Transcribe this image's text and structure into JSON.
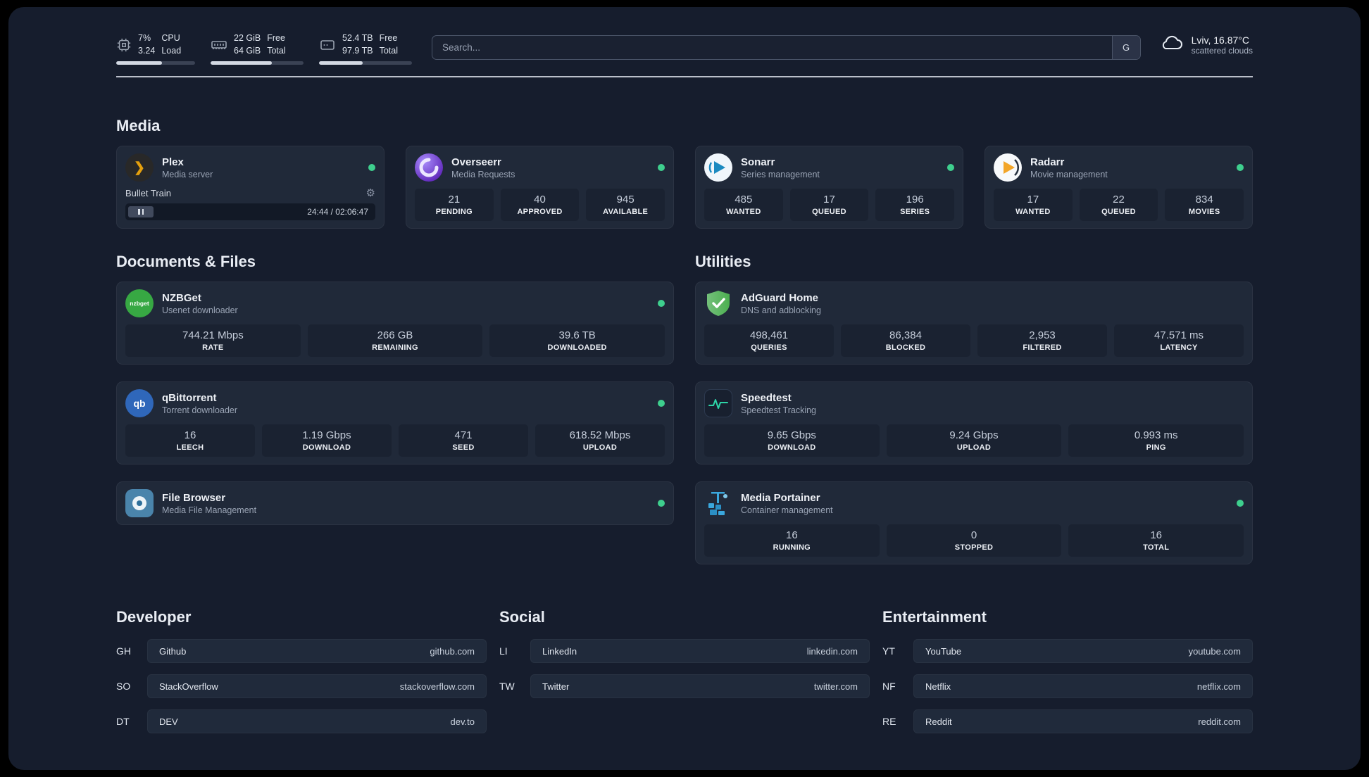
{
  "colors": {
    "background": "#161d2d",
    "card": "#202939",
    "status_online": "#3ecf8e",
    "plex_amber": "#e5a00d",
    "adguard_green": "#5bb85f",
    "portainer_blue": "#3aa7dd"
  },
  "topbar": {
    "cpu": {
      "value_top": "7%",
      "value_bottom": "3.24",
      "label_top": "CPU",
      "label_bottom": "Load",
      "bar_percent": 58
    },
    "memory": {
      "value_top": "22 GiB",
      "value_bottom": "64 GiB",
      "label_top": "Free",
      "label_bottom": "Total",
      "bar_percent": 66
    },
    "disk": {
      "value_top": "52.4 TB",
      "value_bottom": "97.9 TB",
      "label_top": "Free",
      "label_bottom": "Total",
      "bar_percent": 47
    },
    "search": {
      "placeholder": "Search...",
      "button_label": "G"
    },
    "weather": {
      "location": "Lviv, 16.87°C",
      "condition": "scattered clouds"
    }
  },
  "sections": {
    "media": {
      "title": "Media",
      "plex": {
        "name": "Plex",
        "desc": "Media server",
        "player": {
          "track": "Bullet Train",
          "time": "24:44 / 02:06:47"
        }
      },
      "overseerr": {
        "name": "Overseerr",
        "desc": "Media Requests",
        "stats": [
          {
            "value": "21",
            "label": "PENDING"
          },
          {
            "value": "40",
            "label": "APPROVED"
          },
          {
            "value": "945",
            "label": "AVAILABLE"
          }
        ]
      },
      "sonarr": {
        "name": "Sonarr",
        "desc": "Series management",
        "stats": [
          {
            "value": "485",
            "label": "WANTED"
          },
          {
            "value": "17",
            "label": "QUEUED"
          },
          {
            "value": "196",
            "label": "SERIES"
          }
        ]
      },
      "radarr": {
        "name": "Radarr",
        "desc": "Movie management",
        "stats": [
          {
            "value": "17",
            "label": "WANTED"
          },
          {
            "value": "22",
            "label": "QUEUED"
          },
          {
            "value": "834",
            "label": "MOVIES"
          }
        ]
      }
    },
    "documents": {
      "title": "Documents & Files",
      "nzbget": {
        "name": "NZBGet",
        "desc": "Usenet downloader",
        "icon_text": "nzbget",
        "stats": [
          {
            "value": "744.21 Mbps",
            "label": "RATE"
          },
          {
            "value": "266 GB",
            "label": "REMAINING"
          },
          {
            "value": "39.6 TB",
            "label": "DOWNLOADED"
          }
        ]
      },
      "qbittorrent": {
        "name": "qBittorrent",
        "desc": "Torrent downloader",
        "icon_text": "qb",
        "stats": [
          {
            "value": "16",
            "label": "LEECH"
          },
          {
            "value": "1.19 Gbps",
            "label": "DOWNLOAD"
          },
          {
            "value": "471",
            "label": "SEED"
          },
          {
            "value": "618.52 Mbps",
            "label": "UPLOAD"
          }
        ]
      },
      "filebrowser": {
        "name": "File Browser",
        "desc": "Media File Management"
      }
    },
    "utilities": {
      "title": "Utilities",
      "adguard": {
        "name": "AdGuard Home",
        "desc": "DNS and adblocking",
        "stats": [
          {
            "value": "498,461",
            "label": "QUERIES"
          },
          {
            "value": "86,384",
            "label": "BLOCKED"
          },
          {
            "value": "2,953",
            "label": "FILTERED"
          },
          {
            "value": "47.571 ms",
            "label": "LATENCY"
          }
        ]
      },
      "speedtest": {
        "name": "Speedtest",
        "desc": "Speedtest Tracking",
        "stats": [
          {
            "value": "9.65 Gbps",
            "label": "DOWNLOAD"
          },
          {
            "value": "9.24 Gbps",
            "label": "UPLOAD"
          },
          {
            "value": "0.993 ms",
            "label": "PING"
          }
        ]
      },
      "portainer": {
        "name": "Media Portainer",
        "desc": "Container management",
        "stats": [
          {
            "value": "16",
            "label": "RUNNING"
          },
          {
            "value": "0",
            "label": "STOPPED"
          },
          {
            "value": "16",
            "label": "TOTAL"
          }
        ]
      }
    }
  },
  "bookmarks": {
    "developer": {
      "title": "Developer",
      "items": [
        {
          "abbr": "GH",
          "name": "Github",
          "url": "github.com"
        },
        {
          "abbr": "SO",
          "name": "StackOverflow",
          "url": "stackoverflow.com"
        },
        {
          "abbr": "DT",
          "name": "DEV",
          "url": "dev.to"
        }
      ]
    },
    "social": {
      "title": "Social",
      "items": [
        {
          "abbr": "LI",
          "name": "LinkedIn",
          "url": "linkedin.com"
        },
        {
          "abbr": "TW",
          "name": "Twitter",
          "url": "twitter.com"
        }
      ]
    },
    "entertainment": {
      "title": "Entertainment",
      "items": [
        {
          "abbr": "YT",
          "name": "YouTube",
          "url": "youtube.com"
        },
        {
          "abbr": "NF",
          "name": "Netflix",
          "url": "netflix.com"
        },
        {
          "abbr": "RE",
          "name": "Reddit",
          "url": "reddit.com"
        }
      ]
    }
  }
}
